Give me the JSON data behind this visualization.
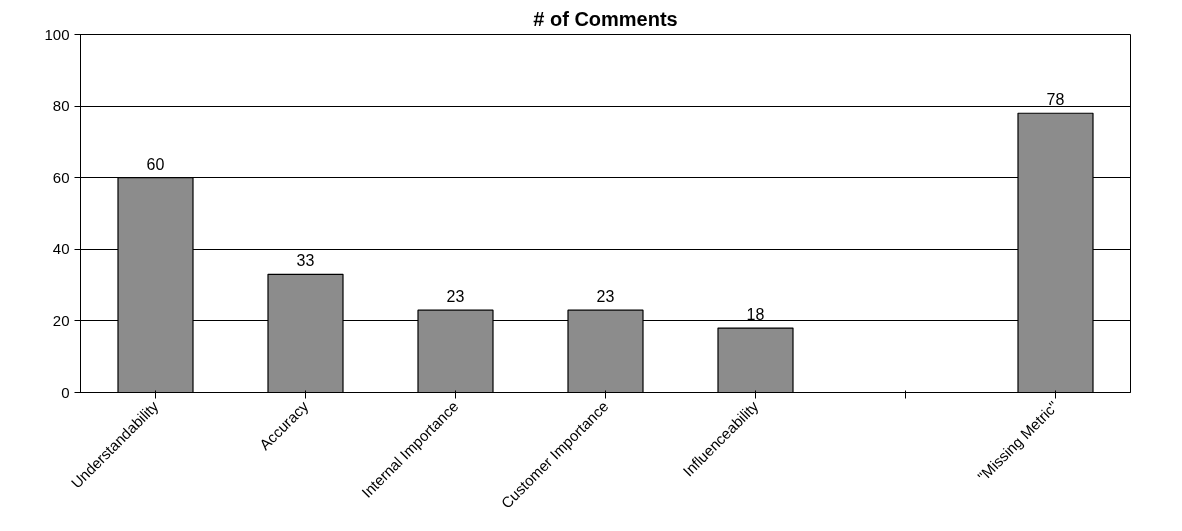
{
  "chart_data": {
    "type": "bar",
    "title": "# of Comments",
    "categories": [
      "Understandability",
      "Accuracy",
      "Internal Importance",
      "Customer Importance",
      "Influenceability",
      null,
      "\"Missing Metric\""
    ],
    "series": [
      {
        "color": "#8c8c8c",
        "values": [
          60,
          33,
          23,
          23,
          18,
          null,
          78
        ]
      }
    ],
    "ylim": [
      0,
      100
    ],
    "yticks": [
      0,
      20,
      40,
      60,
      80,
      100
    ],
    "grid": "y",
    "data_labels": true
  }
}
